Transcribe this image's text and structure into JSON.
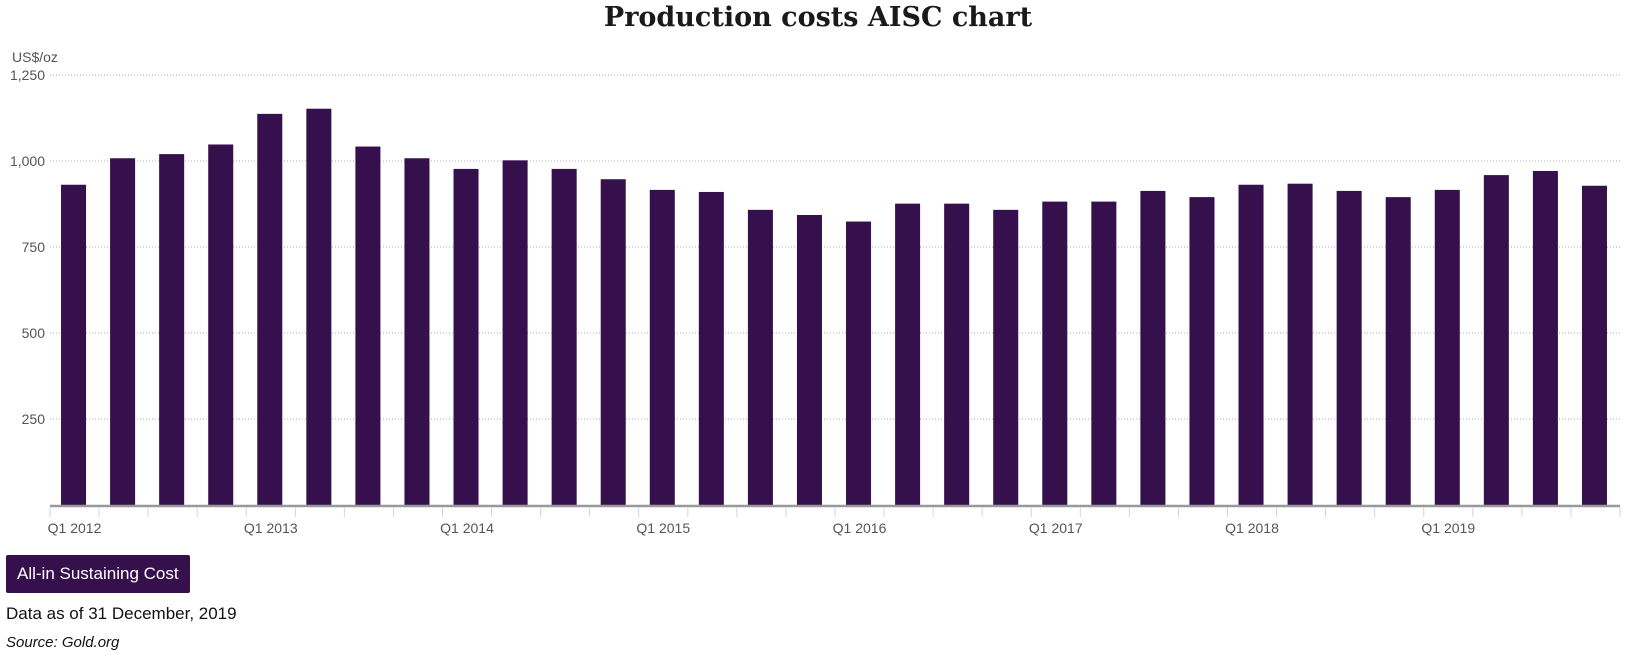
{
  "chart_data": {
    "type": "bar",
    "title": "Production costs AISC chart",
    "ylabel": "US$/oz",
    "xlabel": "",
    "ylim": [
      0,
      1250
    ],
    "yticks": [
      250,
      500,
      750,
      1000,
      1250
    ],
    "ytick_labels": [
      "250",
      "500",
      "750",
      "1,000",
      "1,250"
    ],
    "grid": true,
    "categories": [
      "Q1 2012",
      "Q2 2012",
      "Q3 2012",
      "Q4 2012",
      "Q1 2013",
      "Q2 2013",
      "Q3 2013",
      "Q4 2013",
      "Q1 2014",
      "Q2 2014",
      "Q3 2014",
      "Q4 2014",
      "Q1 2015",
      "Q2 2015",
      "Q3 2015",
      "Q4 2015",
      "Q1 2016",
      "Q2 2016",
      "Q3 2016",
      "Q4 2016",
      "Q1 2017",
      "Q2 2017",
      "Q3 2017",
      "Q4 2017",
      "Q1 2018",
      "Q2 2018",
      "Q3 2018",
      "Q4 2018",
      "Q1 2019",
      "Q2 2019",
      "Q3 2019",
      "Q4 2019"
    ],
    "xtick_labels_shown": [
      "Q1 2012",
      "Q1 2013",
      "Q1 2014",
      "Q1 2015",
      "Q1 2016",
      "Q1 2017",
      "Q1 2018",
      "Q1 2019"
    ],
    "series": [
      {
        "name": "All-in Sustaining Cost",
        "color": "#36104d",
        "values": [
          931,
          1008,
          1020,
          1048,
          1137,
          1152,
          1042,
          1008,
          977,
          1002,
          977,
          947,
          916,
          910,
          858,
          843,
          824,
          876,
          876,
          858,
          882,
          882,
          913,
          895,
          931,
          934,
          913,
          895,
          916,
          959,
          971,
          928
        ]
      }
    ],
    "legend": "bottom-left"
  },
  "footer": {
    "as_of": "Data as of 31 December, 2019",
    "source": "Source: Gold.org"
  }
}
